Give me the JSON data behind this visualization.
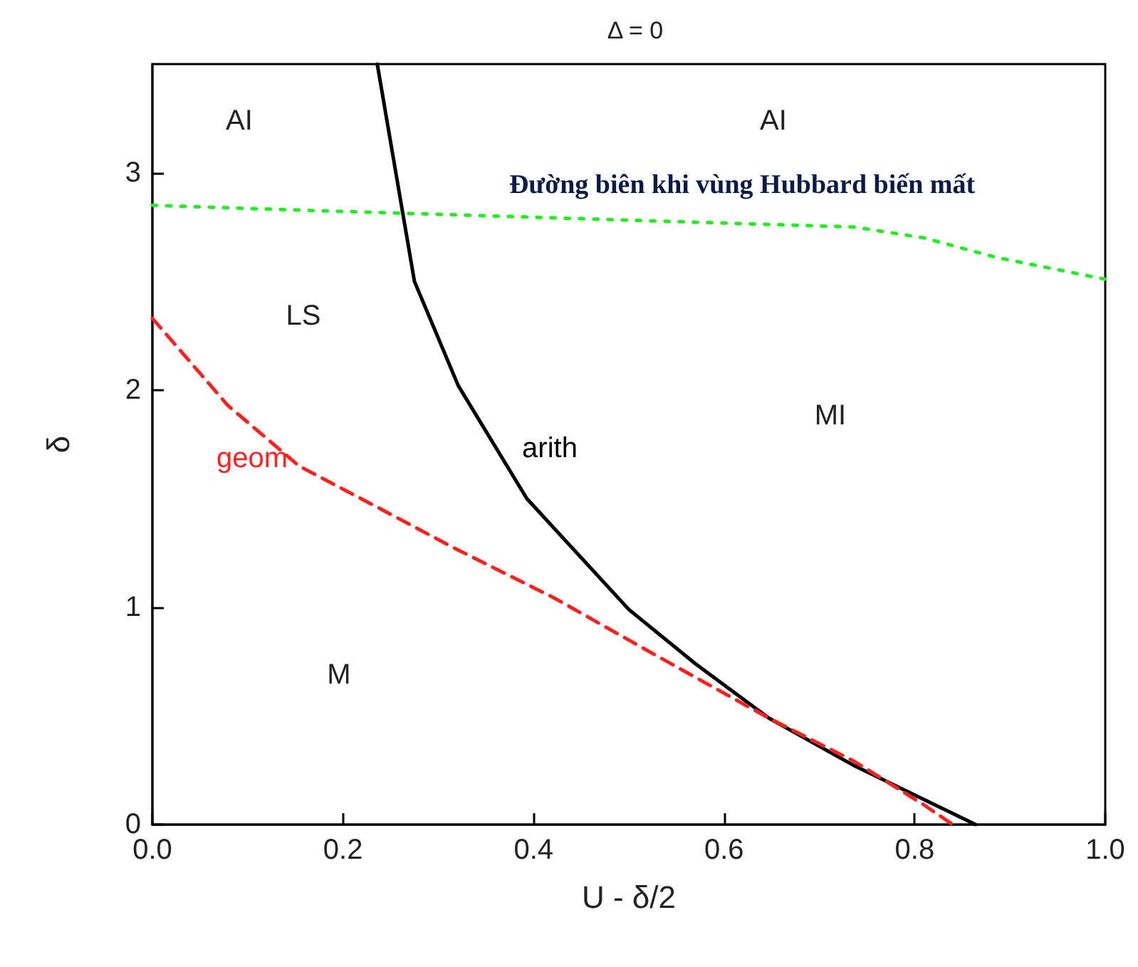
{
  "chart_data": {
    "type": "line",
    "title": "Δ = 0",
    "xlabel": "U - δ/2",
    "ylabel": "δ",
    "xlim": [
      0,
      1
    ],
    "ylim": [
      0,
      3.5
    ],
    "xticks": [
      {
        "value": 0,
        "label": "0.0"
      },
      {
        "value": 0.2,
        "label": "0.2"
      },
      {
        "value": 0.4,
        "label": "0.4"
      },
      {
        "value": 0.6,
        "label": "0.6"
      },
      {
        "value": 0.8,
        "label": "0.8"
      },
      {
        "value": 1,
        "label": "1.0"
      }
    ],
    "yticks": [
      0,
      1,
      2,
      3
    ],
    "grid": false,
    "marker": "none",
    "series": [
      {
        "name": "arith",
        "color": "#000000",
        "line_style": "solid",
        "x": [
          0.236,
          0.275,
          0.321,
          0.393,
          0.5,
          0.57,
          0.647,
          0.737,
          0.864
        ],
        "values": [
          3.5,
          2.5,
          2.02,
          1.5,
          0.99,
          0.74,
          0.49,
          0.27,
          0
        ]
      },
      {
        "name": "geom",
        "color": "#ff2020",
        "line_style": "dashed",
        "x": [
          0,
          0.079,
          0.154,
          0.232,
          0.318,
          0.423,
          0.528,
          0.647,
          0.737,
          0.81,
          0.84
        ],
        "values": [
          2.33,
          1.93,
          1.65,
          1.47,
          1.27,
          1.04,
          0.78,
          0.49,
          0.29,
          0.09,
          0
        ]
      },
      {
        "name": "Đường biên khi vùng Hubbard biến mất",
        "color": "#22ee22",
        "line_style": "dotted",
        "x": [
          0,
          0.139,
          0.289,
          0.438,
          0.587,
          0.737,
          0.81,
          0.886,
          1
        ],
        "values": [
          2.85,
          2.83,
          2.81,
          2.79,
          2.77,
          2.75,
          2.7,
          2.61,
          2.51
        ]
      }
    ],
    "annotations": [
      "AI",
      "AI",
      "LS",
      "MI",
      "M"
    ]
  }
}
